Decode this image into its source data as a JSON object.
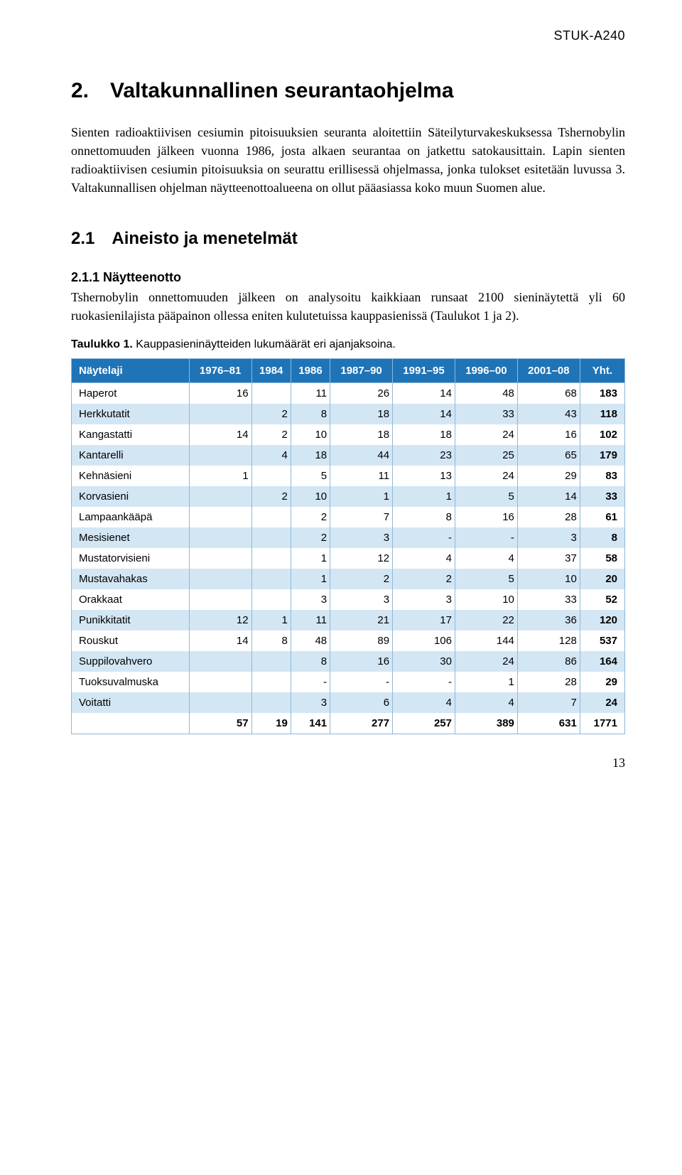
{
  "header_code": "STUK-A240",
  "h1": "2. Valtakunnallinen seurantaohjelma",
  "p1": "Sienten radioaktiivisen cesiumin pitoisuuksien seuranta aloitettiin Säteilyturvakeskuksessa Tshernobylin onnettomuuden jälkeen vuonna 1986, josta alkaen seurantaa on jatkettu satokausittain. Lapin sienten radioaktiivisen cesiumin pitoisuuksia on seurattu erillisessä ohjelmassa, jonka tulokset esitetään luvussa 3. Valtakunnallisen ohjelman näytteenottoalueena on ollut pääasiassa koko muun Suomen alue.",
  "h2": "2.1 Aineisto ja menetelmät",
  "h3": "2.1.1 Näytteenotto",
  "p2": "Tshernobylin onnettomuuden jälkeen on analysoitu kaikkiaan runsaat 2100 sieninäytettä yli 60 ruokasienilajista pääpainon ollessa eniten kulutetuissa kauppasienissä (Taulukot 1 ja 2).",
  "table_caption_bold": "Taulukko 1.",
  "table_caption_rest": " Kauppasieninäytteiden lukumäärät eri ajanjaksoina.",
  "table": {
    "header_bg": "#1f74b8",
    "header_fg": "#ffffff",
    "alt_row_bg": "#d3e6f4",
    "border_color": "#8fb8d8",
    "columns": [
      "Näytelaji",
      "1976–81",
      "1984",
      "1986",
      "1987–90",
      "1991–95",
      "1996–00",
      "2001–08",
      "Yht."
    ],
    "rows": [
      [
        "Haperot",
        "16",
        "",
        "11",
        "26",
        "14",
        "48",
        "68",
        "183"
      ],
      [
        "Herkkutatit",
        "",
        "2",
        "8",
        "18",
        "14",
        "33",
        "43",
        "118"
      ],
      [
        "Kangastatti",
        "14",
        "2",
        "10",
        "18",
        "18",
        "24",
        "16",
        "102"
      ],
      [
        "Kantarelli",
        "",
        "4",
        "18",
        "44",
        "23",
        "25",
        "65",
        "179"
      ],
      [
        "Kehnäsieni",
        "1",
        "",
        "5",
        "11",
        "13",
        "24",
        "29",
        "83"
      ],
      [
        "Korvasieni",
        "",
        "2",
        "10",
        "1",
        "1",
        "5",
        "14",
        "33"
      ],
      [
        "Lampaankääpä",
        "",
        "",
        "2",
        "7",
        "8",
        "16",
        "28",
        "61"
      ],
      [
        "Mesisienet",
        "",
        "",
        "2",
        "3",
        "-",
        "-",
        "3",
        "8"
      ],
      [
        "Mustatorvisieni",
        "",
        "",
        "1",
        "12",
        "4",
        "4",
        "37",
        "58"
      ],
      [
        "Mustavahakas",
        "",
        "",
        "1",
        "2",
        "2",
        "5",
        "10",
        "20"
      ],
      [
        "Orakkaat",
        "",
        "",
        "3",
        "3",
        "3",
        "10",
        "33",
        "52"
      ],
      [
        "Punikkitatit",
        "12",
        "1",
        "11",
        "21",
        "17",
        "22",
        "36",
        "120"
      ],
      [
        "Rouskut",
        "14",
        "8",
        "48",
        "89",
        "106",
        "144",
        "128",
        "537"
      ],
      [
        "Suppilovahvero",
        "",
        "",
        "8",
        "16",
        "30",
        "24",
        "86",
        "164"
      ],
      [
        "Tuoksuvalmuska",
        "",
        "",
        "-",
        "-",
        "-",
        "1",
        "28",
        "29"
      ],
      [
        "Voitatti",
        "",
        "",
        "3",
        "6",
        "4",
        "4",
        "7",
        "24"
      ]
    ],
    "total_row": [
      "",
      "57",
      "19",
      "141",
      "277",
      "257",
      "389",
      "631",
      "1771"
    ]
  },
  "page_number": "13"
}
